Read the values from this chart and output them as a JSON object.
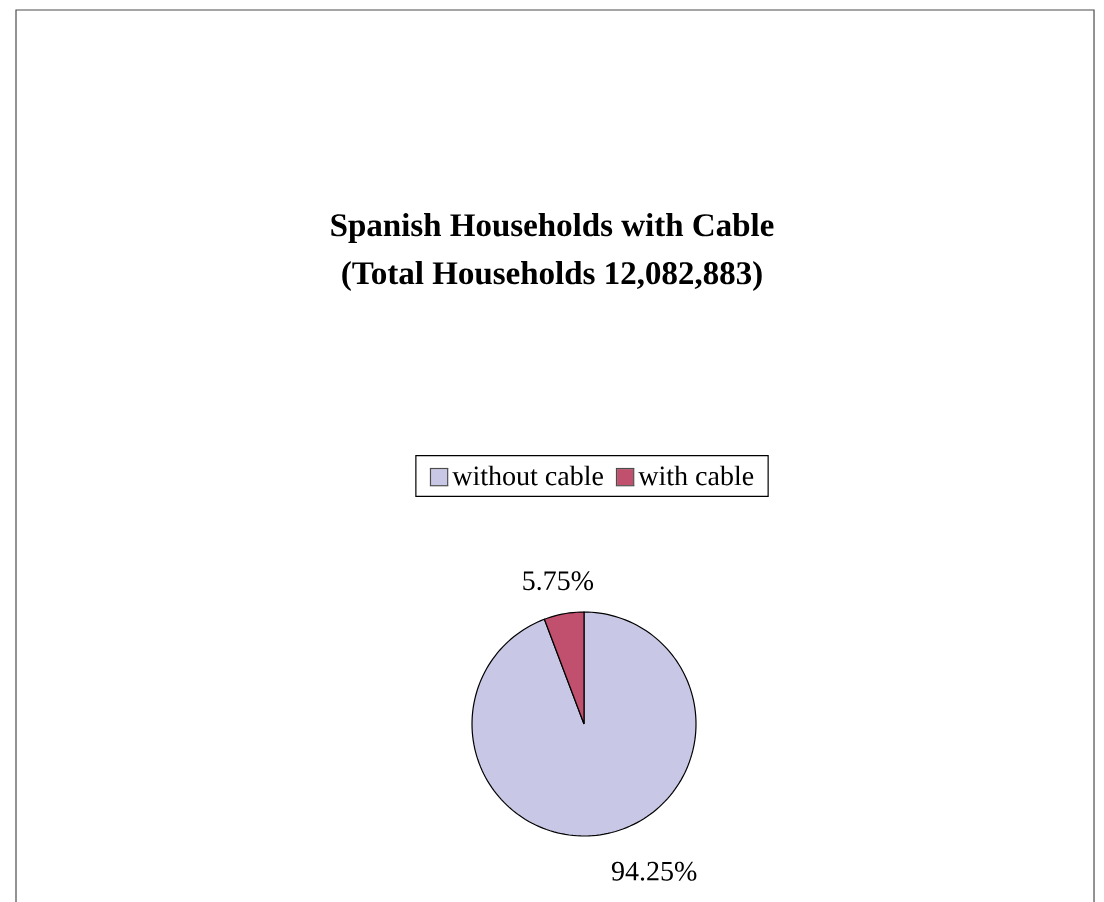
{
  "chart_data": {
    "type": "pie",
    "title": "Spanish Households with Cable",
    "subtitle": "(Total Households 12,082,883)",
    "categories": [
      "without cable",
      "with cable"
    ],
    "values": [
      94.25,
      5.75
    ],
    "colors": [
      "#c8c8e6",
      "#c0506e"
    ],
    "value_labels": [
      "94.25%",
      "5.75%"
    ],
    "legend": "top"
  }
}
